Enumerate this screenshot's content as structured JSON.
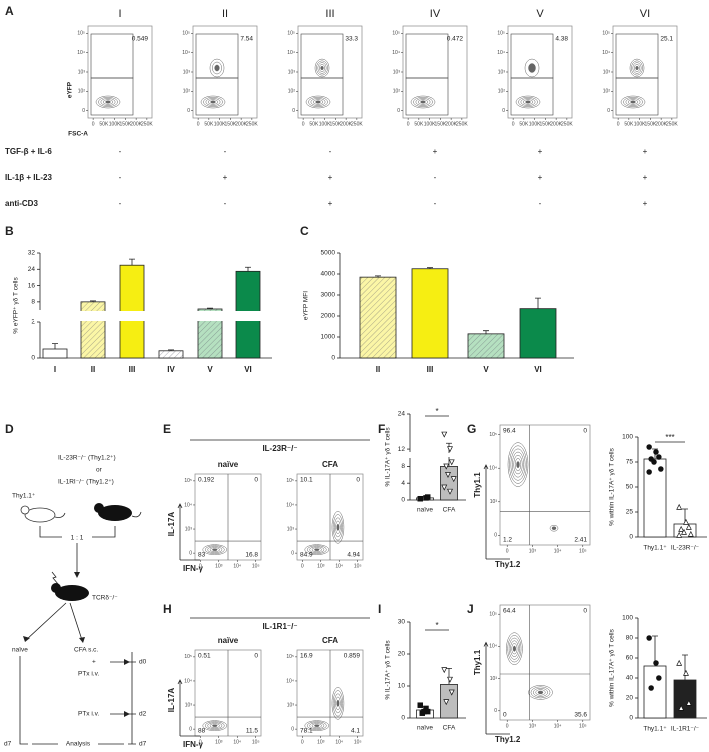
{
  "panels": {
    "A": {
      "label": "A",
      "columns": [
        "I",
        "II",
        "III",
        "IV",
        "V",
        "VI"
      ],
      "gate_values": [
        0.549,
        7.54,
        33.3,
        0.472,
        4.38,
        25.1
      ],
      "y_axis": "eYFP",
      "x_axis": "FSC-A",
      "x_ticks": [
        "0",
        "50K",
        "100K",
        "150K",
        "200K",
        "250K"
      ],
      "y_ticks": [
        "10⁵",
        "10⁴",
        "10³",
        "10²",
        "0"
      ],
      "treatments": [
        {
          "label": "TGF-β + IL-6",
          "values": [
            "-",
            "-",
            "-",
            "+",
            "+",
            "+"
          ]
        },
        {
          "label": "IL-1β + IL-23",
          "values": [
            "-",
            "+",
            "+",
            "-",
            "+",
            "+"
          ]
        },
        {
          "label": "anti-CD3",
          "values": [
            "-",
            "-",
            "+",
            "-",
            "-",
            "+"
          ]
        }
      ]
    },
    "B": {
      "label": "B",
      "type": "bar",
      "y_label": "% eYFP⁺ γδ T cells",
      "categories": [
        "I",
        "II",
        "III",
        "IV",
        "V",
        "VI"
      ],
      "values": [
        0.5,
        8,
        26,
        0.4,
        4.5,
        23
      ],
      "errors": [
        0.3,
        0.5,
        3,
        0.05,
        0.4,
        2
      ],
      "colors": [
        "#ffffff",
        "#fbf6a6",
        "#f6ee12",
        "#ffffff",
        "#b5e0c0",
        "#0b8a4b"
      ],
      "hatched": [
        false,
        true,
        false,
        true,
        true,
        false
      ],
      "ylim_segments": [
        [
          0,
          2
        ],
        [
          4,
          32
        ]
      ],
      "yticks": [
        0,
        2,
        8,
        16,
        24,
        32
      ]
    },
    "C": {
      "label": "C",
      "type": "bar",
      "y_label": "eYFP MFI",
      "categories": [
        "II",
        "III",
        "V",
        "VI"
      ],
      "values": [
        3850,
        4250,
        1150,
        2350
      ],
      "errors": [
        60,
        50,
        150,
        500
      ],
      "colors": [
        "#fbf6a6",
        "#f6ee12",
        "#b5e0c0",
        "#0b8a4b"
      ],
      "hatched": [
        true,
        false,
        true,
        false
      ],
      "ylim": [
        0,
        5000
      ],
      "yticks": [
        0,
        1000,
        2000,
        3000,
        4000,
        5000
      ]
    },
    "D": {
      "label": "D",
      "donor_wt": "Thy1.1⁺",
      "donor_ko_1": "IL-23R⁻/⁻ (Thy1.2⁺)",
      "or": "or",
      "donor_ko_2": "IL-1RI⁻/⁻ (Thy1.2⁺)",
      "ratio": "1 : 1",
      "recipient": "TCRδ⁻/⁻",
      "naive": "naïve",
      "cfa": "CFA s.c.",
      "plus": "+",
      "ptx1": "PTx i.v.",
      "d0": "d0",
      "ptx2": "PTx i.v.",
      "d2": "d2",
      "d7_left": "d7",
      "analysis": "Analysis",
      "d7_right": "d7"
    },
    "E": {
      "label": "E",
      "title": "IL-23R⁻/⁻",
      "y_axis": "IL-17A",
      "x_axis": "IFN-γ",
      "x_ticks": [
        "0",
        "10³",
        "10⁴",
        "10⁵"
      ],
      "y_ticks": [
        "10⁵",
        "10⁴",
        "10³",
        "0"
      ],
      "plots": [
        {
          "name": "naïve",
          "quadrants": [
            0.192,
            0,
            83,
            16.8
          ]
        },
        {
          "name": "CFA",
          "quadrants": [
            10.1,
            0,
            84.9,
            4.94
          ]
        }
      ]
    },
    "F": {
      "label": "F",
      "type": "bar",
      "y_label": "% IL-17A⁺ γδ T cells",
      "categories": [
        "naïve",
        "CFA"
      ],
      "values": [
        0.5,
        8
      ],
      "errors": [
        0.3,
        6
      ],
      "points": [
        [
          0.3,
          0.5,
          0.7
        ],
        [
          17,
          12,
          9,
          8,
          6,
          5,
          3,
          2
        ]
      ],
      "markers": [
        "square",
        "triangle-down"
      ],
      "colors": [
        "#ffffff",
        "#bdbdbd"
      ],
      "ylim_segments": [
        [
          0,
          10
        ],
        [
          11,
          24
        ]
      ],
      "yticks": [
        0,
        4,
        8,
        12,
        24
      ],
      "significance": "*"
    },
    "G": {
      "label": "G",
      "flow": {
        "y_axis": "Thy1.1",
        "x_axis": "Thy1.2",
        "x_ticks": [
          "0",
          "10³",
          "10⁴",
          "10⁵"
        ],
        "y_ticks": [
          "10⁵",
          "10⁴",
          "10³",
          "0"
        ],
        "quadrants": [
          96.4,
          0,
          1.2,
          2.41
        ]
      },
      "bars": {
        "type": "bar",
        "y_label": "% within IL-17A⁺ γδ T cells",
        "categories": [
          "Thy1.1⁺",
          "IL-23R⁻/⁻"
        ],
        "values": [
          78,
          13
        ],
        "errors": [
          10,
          15
        ],
        "points": [
          [
            90,
            85,
            80,
            78,
            75,
            68,
            65
          ],
          [
            30,
            15,
            10,
            8,
            5,
            3,
            2
          ]
        ],
        "markers": [
          "circle",
          "triangle-up"
        ],
        "colors": [
          "#ffffff",
          "#ffffff"
        ],
        "ylim": [
          0,
          100
        ],
        "yticks": [
          0,
          25,
          50,
          75,
          100
        ],
        "significance": "***"
      }
    },
    "H": {
      "label": "H",
      "title": "IL-1R1⁻/⁻",
      "y_axis": "IL-17A",
      "x_axis": "IFN-γ",
      "x_ticks": [
        "0",
        "10³",
        "10⁴",
        "10⁵"
      ],
      "y_ticks": [
        "10⁵",
        "10⁴",
        "10³",
        "0"
      ],
      "plots": [
        {
          "name": "naïve",
          "quadrants": [
            0.51,
            0,
            88,
            11.5
          ]
        },
        {
          "name": "CFA",
          "quadrants": [
            16.9,
            0.859,
            78.1,
            4.1
          ]
        }
      ]
    },
    "I": {
      "label": "I",
      "type": "bar",
      "y_label": "% IL-17A⁺ γδ T cells",
      "categories": [
        "naïve",
        "CFA"
      ],
      "values": [
        2.5,
        10.5
      ],
      "errors": [
        1,
        5
      ],
      "points": [
        [
          4,
          3,
          2,
          1.5,
          2
        ],
        [
          15,
          12,
          8,
          5
        ]
      ],
      "markers": [
        "square",
        "triangle-down"
      ],
      "colors": [
        "#ffffff",
        "#bdbdbd"
      ],
      "ylim": [
        0,
        30
      ],
      "yticks": [
        0,
        10,
        20,
        30
      ],
      "significance": "*"
    },
    "J": {
      "label": "J",
      "flow": {
        "y_axis": "Thy1.1",
        "x_axis": "Thy1.2",
        "x_ticks": [
          "0",
          "10³",
          "10⁴",
          "10⁵"
        ],
        "y_ticks": [
          "10⁵",
          "10⁴",
          "10³",
          "0"
        ],
        "quadrants": [
          64.4,
          0,
          0,
          35.6
        ]
      },
      "bars": {
        "type": "bar",
        "y_label": "% within IL-17A⁺ γδ T cells",
        "categories": [
          "Thy1.1⁺",
          "IL-1R1⁻/⁻"
        ],
        "values": [
          52,
          38
        ],
        "errors": [
          30,
          25
        ],
        "points": [
          [
            80,
            55,
            40,
            30
          ],
          [
            55,
            45,
            15,
            10
          ]
        ],
        "markers": [
          "circle",
          "triangle-up"
        ],
        "colors": [
          "#ffffff",
          "#222222"
        ],
        "ylim": [
          0,
          100
        ],
        "yticks": [
          0,
          20,
          40,
          60,
          80,
          100
        ]
      }
    }
  }
}
